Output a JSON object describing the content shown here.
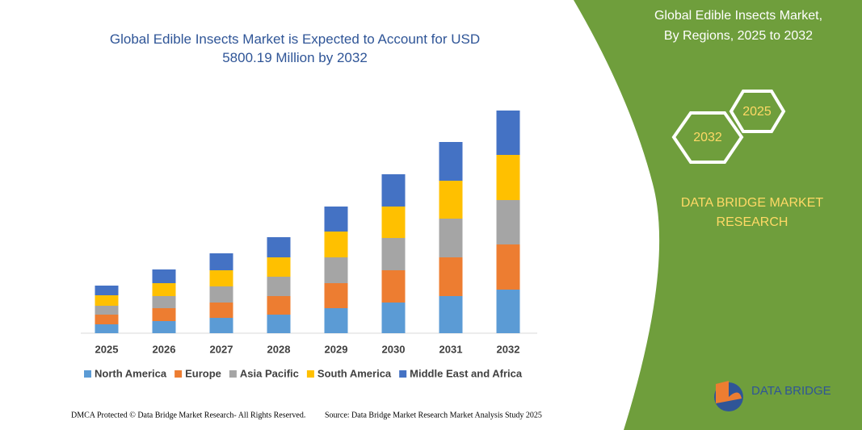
{
  "chart_data": {
    "type": "stacked-bar",
    "title": "Global Edible Insects Market is Expected to Account for USD 5800.19 Million by 2032",
    "categories": [
      "2025",
      "2026",
      "2027",
      "2028",
      "2029",
      "2030",
      "2031",
      "2032"
    ],
    "series": [
      {
        "name": "North America",
        "color": "#5b9bd5",
        "values": [
          11,
          15,
          19,
          23,
          31,
          38,
          46,
          54
        ]
      },
      {
        "name": "Europe",
        "color": "#ed7d31",
        "values": [
          12,
          16,
          19,
          23,
          31,
          40,
          48,
          56
        ]
      },
      {
        "name": "Asia Pacific",
        "color": "#a5a5a5",
        "values": [
          11,
          15,
          20,
          24,
          32,
          40,
          48,
          55
        ]
      },
      {
        "name": "South America",
        "color": "#ffc000",
        "values": [
          13,
          16,
          20,
          24,
          32,
          39,
          47,
          56
        ]
      },
      {
        "name": "Middle East and Africa",
        "color": "#4472c4",
        "values": [
          12,
          17,
          21,
          25,
          31,
          40,
          48,
          55
        ]
      }
    ]
  },
  "panel": {
    "title": "Global Edible Insects Market, By Regions, 2025 to 2032",
    "hexagons": [
      "2025",
      "2032"
    ],
    "brand": "DATA BRIDGE MARKET RESEARCH"
  },
  "logo": "DATA BRIDGE",
  "footer": {
    "left": "DMCA Protected © Data Bridge Market Research- All Rights Reserved.",
    "right": "Source: Data Bridge Market Research Market Analysis Study 2025"
  }
}
